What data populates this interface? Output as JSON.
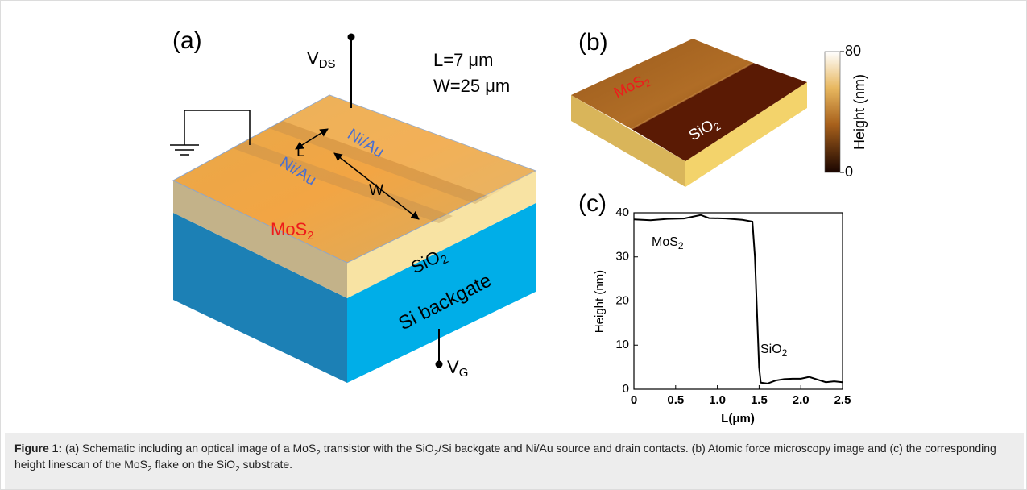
{
  "panel_a": {
    "label": "(a)",
    "vds": {
      "main": "V",
      "sub": "DS"
    },
    "length": "L=7 μm",
    "width": "W=25 μm",
    "l_marker": "L",
    "w_marker": "W",
    "contact_top": "Ni/Au",
    "contact_bottom": "Ni/Au",
    "flake": {
      "main": "MoS",
      "sub": "2"
    },
    "oxide": {
      "main": "SiO",
      "sub": "2"
    },
    "substrate": "Si backgate",
    "vg": {
      "main": "V",
      "sub": "G"
    }
  },
  "panel_b": {
    "label": "(b)",
    "flake": {
      "main": "MoS",
      "sub": "2"
    },
    "oxide": {
      "main": "SiO",
      "sub": "2"
    },
    "colorbar": {
      "title": "Height (nm)",
      "range": [
        0,
        80
      ],
      "ticks": [
        80,
        0
      ]
    }
  },
  "panel_c": {
    "label": "(c)"
  },
  "chart_data": {
    "type": "line",
    "xlabel": "L(μm)",
    "ylabel": "Height (nm)",
    "x": [
      0,
      0.2,
      0.4,
      0.6,
      0.8,
      0.9,
      1.1,
      1.3,
      1.42,
      1.45,
      1.48,
      1.5,
      1.52,
      1.6,
      1.7,
      1.8,
      1.9,
      2.0,
      2.1,
      2.2,
      2.3,
      2.4,
      2.5
    ],
    "series": [
      {
        "color": "#000000",
        "values": [
          38.5,
          38.3,
          38.6,
          38.7,
          39.5,
          38.8,
          38.7,
          38.4,
          38,
          30,
          15,
          5,
          1.5,
          1.3,
          2,
          2.3,
          2.4,
          2.4,
          2.8,
          2.2,
          1.6,
          1.8,
          1.6
        ]
      }
    ],
    "xlim": [
      0,
      2.5
    ],
    "ylim": [
      0,
      40
    ],
    "xticks": [
      0,
      0.5,
      {
        "value": 1,
        "label": "1.0"
      },
      1.5,
      {
        "value": 2,
        "label": "2.0"
      },
      2.5
    ],
    "yticks": [
      0,
      10,
      20,
      30,
      40
    ],
    "annotations": [
      {
        "main": "MoS",
        "sub": "2"
      },
      {
        "main": "SiO",
        "sub": "2"
      }
    ]
  },
  "caption": {
    "label": "Figure 1:",
    "segments": [
      {
        "text": " (a) Schematic including an optical image of a MoS"
      },
      {
        "sub": "2"
      },
      {
        "text": " transistor with the SiO"
      },
      {
        "sub": "2"
      },
      {
        "text": "/Si backgate and Ni/Au source and drain contacts. (b) Atomic force microscopy image and (c) the corresponding height linescan of the MoS"
      },
      {
        "sub": "2"
      },
      {
        "text": " flake on the SiO"
      },
      {
        "sub": "2"
      },
      {
        "text": " substrate."
      }
    ]
  }
}
